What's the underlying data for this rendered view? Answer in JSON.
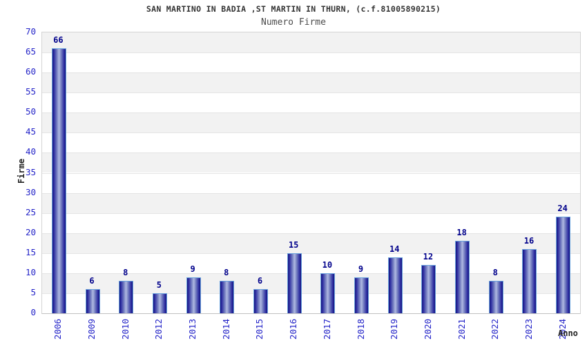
{
  "chart": {
    "title": "SAN MARTINO IN BADIA ,ST MARTIN IN THURN, (c.f.81005890215)",
    "subtitle": "Numero Firme",
    "ylabel": "Firme",
    "xlabel": "Anno"
  },
  "chart_data": {
    "type": "bar",
    "title": "SAN MARTINO IN BADIA ,ST MARTIN IN THURN, (c.f.81005890215)",
    "subtitle": "Numero Firme",
    "xlabel": "Anno",
    "ylabel": "Firme",
    "categories": [
      "2006",
      "2009",
      "2010",
      "2012",
      "2013",
      "2014",
      "2015",
      "2016",
      "2017",
      "2018",
      "2019",
      "2020",
      "2021",
      "2022",
      "2023",
      "2024"
    ],
    "values": [
      66,
      6,
      8,
      5,
      9,
      8,
      6,
      15,
      10,
      9,
      14,
      12,
      18,
      8,
      16,
      24
    ],
    "ylim": [
      0,
      70
    ],
    "ytick_step": 5,
    "grid": "horizontal-bands-alternating",
    "legend": "none",
    "bar_value_labels": true
  },
  "colors": {
    "bar_edge_dark": "#14147a",
    "bar_mid": "#7c86c4",
    "bar_highlight": "#b0b9e2",
    "bar_border": "#69a2dd",
    "value_label": "#00008b",
    "tick_label": "#2323c8",
    "band_gray": "#f2f2f2",
    "band_white": "#ffffff",
    "grid_line": "#e4e4e4",
    "plot_border": "#d4d4d4",
    "title_color": "#333333"
  }
}
